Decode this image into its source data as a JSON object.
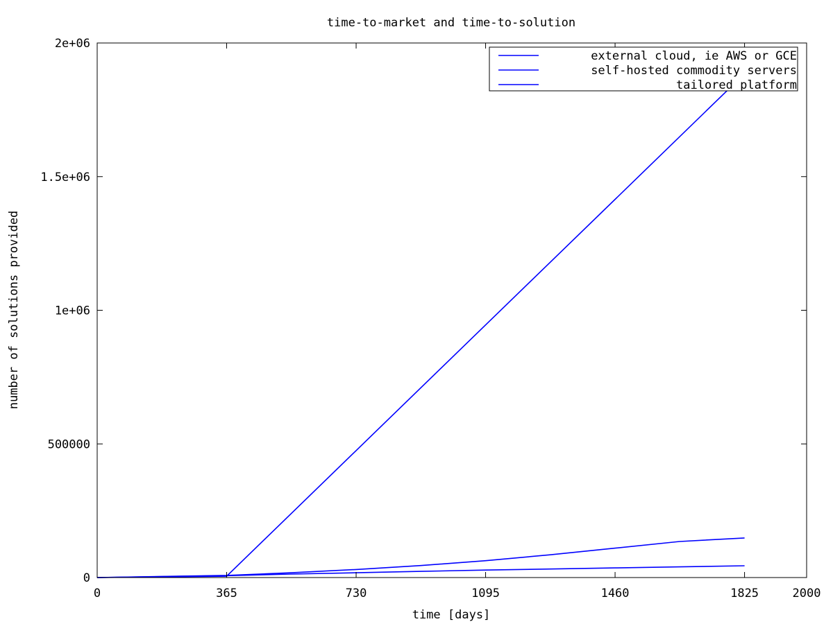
{
  "chart_data": {
    "type": "line",
    "title": "time-to-market and time-to-solution",
    "xlabel": "time [days]",
    "ylabel": "number of solutions provided",
    "xlim": [
      0,
      2000
    ],
    "ylim": [
      0,
      2000000
    ],
    "x_ticks": [
      0,
      365,
      730,
      1095,
      1460,
      1825,
      2000
    ],
    "x_tick_labels": [
      "0",
      "365",
      "730",
      "1095",
      "1460",
      "1825",
      "2000"
    ],
    "y_ticks": [
      0,
      500000,
      1000000,
      1500000,
      2000000
    ],
    "y_tick_labels": [
      "0",
      "500000",
      "1e+06",
      "1.5e+06",
      "2e+06"
    ],
    "grid": false,
    "legend_position": "top-right",
    "line_color": "#0000ff",
    "series": [
      {
        "name": "external cloud, ie AWS or GCE",
        "x": [
          0,
          365,
          547,
          730,
          912,
          1095,
          1277,
          1460,
          1642,
          1825
        ],
        "y": [
          0,
          8000,
          18000,
          30000,
          45000,
          63000,
          85000,
          110000,
          135000,
          148000
        ]
      },
      {
        "name": "self-hosted commodity servers",
        "x": [
          0,
          365,
          547,
          730,
          912,
          1095,
          1277,
          1460,
          1642,
          1825
        ],
        "y": [
          0,
          7000,
          13000,
          18000,
          23000,
          28000,
          32000,
          36000,
          40000,
          44000
        ]
      },
      {
        "name": "tailored platform",
        "x": [
          0,
          365,
          730,
          1095,
          1460,
          1825
        ],
        "y": [
          0,
          5000,
          475000,
          945000,
          1415000,
          1885000
        ]
      }
    ]
  }
}
